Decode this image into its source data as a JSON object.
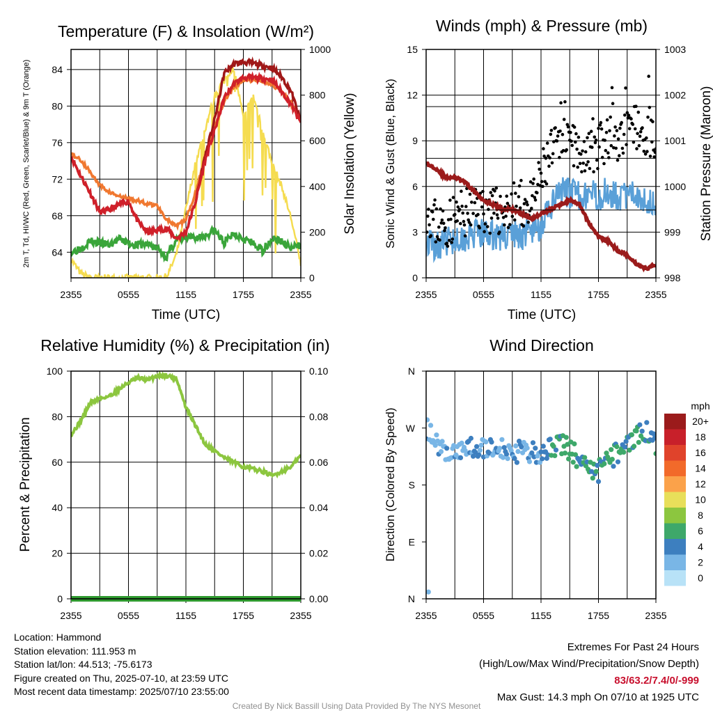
{
  "panels": {
    "temperature": {
      "title": "Temperature (F) & Insolation (W/m²)",
      "ylabel_left": "2m T, Td, HI/WC (Red, Green, Scarlet/Blue) & 9m T (Orange)",
      "ylabel_right": "Solar Insolation (Yellow)",
      "xlabel": "Time (UTC)"
    },
    "winds": {
      "title": "Winds (mph) & Pressure (mb)",
      "ylabel_left": "Sonic Wind & Gust (Blue, Black)",
      "ylabel_right": "Station Pressure (Maroon)",
      "xlabel": "Time (UTC)"
    },
    "humidity": {
      "title": "Relative Humidity (%) & Precipitation (in)",
      "ylabel_left": "Percent & Precipitation"
    },
    "direction": {
      "title": "Wind Direction",
      "ylabel_left": "Direction (Colored By Speed)",
      "colorbar_title": "mph"
    }
  },
  "colors": {
    "temp": "#d0202a",
    "heat_index": "#a01818",
    "temp_9m": "#f07830",
    "dewpoint": "#3aa53a",
    "insolation": "#f5dc50",
    "wind": "#5aa0d8",
    "gust": "#000000",
    "pressure": "#9b1b1b",
    "humidity": "#8cc63f",
    "precip": "#2f9a2f"
  },
  "colorbar": {
    "labels": [
      "20+",
      "18",
      "16",
      "14",
      "12",
      "10",
      "8",
      "6",
      "4",
      "2",
      "0"
    ],
    "colors": [
      "#9b1b1b",
      "#c8202a",
      "#e0432b",
      "#f26a2a",
      "#fba24a",
      "#e8df5a",
      "#8cc63f",
      "#3ea86a",
      "#3d7fbf",
      "#79b6e6",
      "#b8e2f7"
    ]
  },
  "chart_data": [
    {
      "type": "line",
      "title": "Temperature (F) & Insolation (W/m²)",
      "xlabel": "Time (UTC)",
      "ylabel": "2m T, Td, HI/WC (Red, Green, Scarlet/Blue) & 9m T (Orange)",
      "y2label": "Solar Insolation (Yellow)",
      "x_ticks": [
        "2355",
        "0555",
        "1155",
        "1755",
        "2355"
      ],
      "y_ticks": [
        64,
        68,
        72,
        76,
        80,
        84
      ],
      "y2_ticks": [
        0,
        200,
        400,
        600,
        800,
        1000
      ],
      "ylim": [
        61.2,
        86.2
      ],
      "y2lim": [
        0,
        1000
      ],
      "x_hours": [
        0,
        1,
        2,
        3,
        4,
        5,
        6,
        7,
        8,
        9,
        10,
        11,
        12,
        13,
        14,
        15,
        16,
        17,
        18,
        19,
        20,
        21,
        22,
        23,
        24
      ],
      "series": [
        {
          "key": "temp_9m",
          "values": [
            74.8,
            74.1,
            72.8,
            71.3,
            70.6,
            70.1,
            69.9,
            69.6,
            69.3,
            69.1,
            67.6,
            66.8,
            67.6,
            70.5,
            74.5,
            77.8,
            80.5,
            82.1,
            82.8,
            82.9,
            82.8,
            82.4,
            81.5,
            80.3,
            78.4
          ],
          "axis": "left"
        },
        {
          "key": "temp",
          "values": [
            74.5,
            72.4,
            70.5,
            68.4,
            68.6,
            69.2,
            69.6,
            67.3,
            66.2,
            66.4,
            66.6,
            65.5,
            66.2,
            69.5,
            74.0,
            77.3,
            80.9,
            82.4,
            83.1,
            83.1,
            83.0,
            82.9,
            81.6,
            80.2,
            78.1
          ],
          "axis": "left"
        },
        {
          "key": "heat_index",
          "values": [
            74.5,
            72.4,
            70.5,
            68.4,
            68.6,
            69.2,
            69.6,
            67.3,
            66.2,
            66.4,
            66.6,
            65.5,
            66.2,
            69.5,
            74.5,
            78.5,
            83.6,
            84.6,
            84.8,
            84.7,
            84.4,
            84.2,
            83.2,
            81.6,
            78.3
          ],
          "axis": "left"
        },
        {
          "key": "dewpoint",
          "values": [
            64.0,
            64.5,
            65.2,
            65.0,
            64.8,
            65.4,
            65.0,
            64.8,
            64.9,
            64.4,
            63.5,
            65.4,
            65.5,
            65.6,
            65.8,
            66.4,
            65.0,
            66.1,
            65.6,
            64.9,
            64.2,
            65.5,
            65.2,
            64.4,
            64.8
          ],
          "axis": "left"
        },
        {
          "key": "insolation",
          "values": [
            80,
            20,
            0,
            0,
            0,
            0,
            0,
            0,
            0,
            0,
            5,
            100,
            300,
            500,
            650,
            800,
            870,
            920,
            700,
            800,
            650,
            500,
            400,
            260,
            60
          ],
          "axis": "right"
        }
      ]
    },
    {
      "type": "line",
      "title": "Winds (mph) & Pressure (mb)",
      "xlabel": "Time (UTC)",
      "ylabel": "Sonic Wind & Gust (Blue, Black)",
      "y2label": "Station Pressure (Maroon)",
      "x_ticks": [
        "2355",
        "0555",
        "1155",
        "1755",
        "2355"
      ],
      "y_ticks": [
        0,
        3,
        6,
        9,
        12,
        15
      ],
      "y2_ticks": [
        998,
        999,
        1000,
        1001,
        1002,
        1003
      ],
      "ylim": [
        0,
        15
      ],
      "y2lim": [
        998,
        1003
      ],
      "x_hours": [
        0,
        1,
        2,
        3,
        4,
        5,
        6,
        7,
        8,
        9,
        10,
        11,
        12,
        13,
        14,
        15,
        16,
        17,
        18,
        19,
        20,
        21,
        22,
        23,
        24
      ],
      "series": [
        {
          "key": "wind",
          "values": [
            2.4,
            2.1,
            2.4,
            2.6,
            2.7,
            2.8,
            2.9,
            2.8,
            2.7,
            2.9,
            2.8,
            3.1,
            3.4,
            4.6,
            5.6,
            5.6,
            5.4,
            5.5,
            5.3,
            5.7,
            5.4,
            5.3,
            5.6,
            5.1,
            4.9
          ],
          "axis": "left"
        },
        {
          "key": "gust",
          "values": [
            4.6,
            3.6,
            3.4,
            4.0,
            4.2,
            4.6,
            4.6,
            4.3,
            4.4,
            4.7,
            4.8,
            4.7,
            6.5,
            8.1,
            8.7,
            8.6,
            8.3,
            8.4,
            8.6,
            9.3,
            9.0,
            9.5,
            10.0,
            9.7,
            8.3
          ],
          "axis": "left"
        },
        {
          "key": "pressure",
          "values": [
            1000.5,
            1000.4,
            1000.2,
            1000.2,
            1000.1,
            999.9,
            999.7,
            999.6,
            999.5,
            999.5,
            999.4,
            999.3,
            999.4,
            999.5,
            999.6,
            999.7,
            999.6,
            999.2,
            998.9,
            998.8,
            998.6,
            998.5,
            998.3,
            998.2,
            998.3
          ],
          "axis": "right"
        }
      ]
    },
    {
      "type": "line",
      "title": "Relative Humidity (%) & Precipitation (in)",
      "ylabel": "Percent & Precipitation",
      "x_ticks": [
        "2355",
        "0555",
        "1155",
        "1755",
        "2355"
      ],
      "y_ticks": [
        0,
        20,
        40,
        60,
        80,
        100
      ],
      "y2_ticks": [
        "0.00",
        "0.02",
        "0.04",
        "0.06",
        "0.08",
        "0.10"
      ],
      "ylim": [
        0,
        100
      ],
      "y2lim": [
        0,
        0.1
      ],
      "x_hours": [
        0,
        1,
        2,
        3,
        4,
        5,
        6,
        7,
        8,
        9,
        10,
        11,
        12,
        13,
        14,
        15,
        16,
        17,
        18,
        19,
        20,
        21,
        22,
        23,
        24
      ],
      "series": [
        {
          "key": "humidity",
          "values": [
            72,
            78,
            86,
            88,
            89,
            92,
            95,
            97,
            96,
            98,
            98,
            97,
            84,
            76,
            68,
            65,
            62,
            60,
            58,
            57,
            56,
            54,
            56,
            58,
            63
          ],
          "axis": "left"
        },
        {
          "key": "precip",
          "values": [
            0,
            0,
            0,
            0,
            0,
            0,
            0,
            0,
            0,
            0,
            0,
            0,
            0,
            0,
            0,
            0,
            0,
            0,
            0,
            0,
            0,
            0,
            0,
            0,
            0
          ],
          "axis": "right"
        }
      ]
    },
    {
      "type": "scatter",
      "title": "Wind Direction",
      "ylabel": "Direction (Colored By Speed)",
      "x_ticks": [
        "2355",
        "0555",
        "1155",
        "1755",
        "2355"
      ],
      "y_ticks": [
        "N",
        "E",
        "S",
        "W",
        "N"
      ],
      "ylim": [
        0,
        360
      ],
      "x_hours": [
        0,
        1,
        2,
        3,
        4,
        5,
        6,
        7,
        8,
        9,
        10,
        11,
        12,
        13,
        14,
        15,
        16,
        17,
        18,
        19,
        20,
        21,
        22,
        23,
        24
      ],
      "series": [
        {
          "key": "direction",
          "values": [
            270,
            245,
            232,
            232,
            235,
            238,
            236,
            240,
            238,
            233,
            232,
            230,
            233,
            238,
            247,
            236,
            222,
            204,
            202,
            218,
            232,
            240,
            258,
            263,
            245
          ]
        },
        {
          "key": "speed",
          "values": [
            2.4,
            2.1,
            2.4,
            2.6,
            2.7,
            2.8,
            2.9,
            2.8,
            2.7,
            2.9,
            2.8,
            3.1,
            3.4,
            4.6,
            5.6,
            5.6,
            5.4,
            5.5,
            5.3,
            5.7,
            5.4,
            5.3,
            5.6,
            5.1,
            4.9
          ]
        }
      ]
    }
  ],
  "info": {
    "location": "Location: Hammond",
    "elevation": "Station elevation: 111.953 m",
    "latlon": "Station lat/lon: 44.513; -75.6173",
    "created": "Figure created on Thu, 2025-07-10, at 23:59 UTC",
    "recent": "Most recent data timestamp: 2025/07/10 23:55:00"
  },
  "extremes": {
    "title": "Extremes For Past 24 Hours",
    "subtitle": "(High/Low/Max Wind/Precipitation/Snow Depth)",
    "values": "83/63.2/7.4/0/-999",
    "gust": "Max Gust: 14.3 mph On 07/10 at 1925 UTC"
  },
  "credit": "Created By Nick Bassill Using Data Provided By The NYS Mesonet"
}
